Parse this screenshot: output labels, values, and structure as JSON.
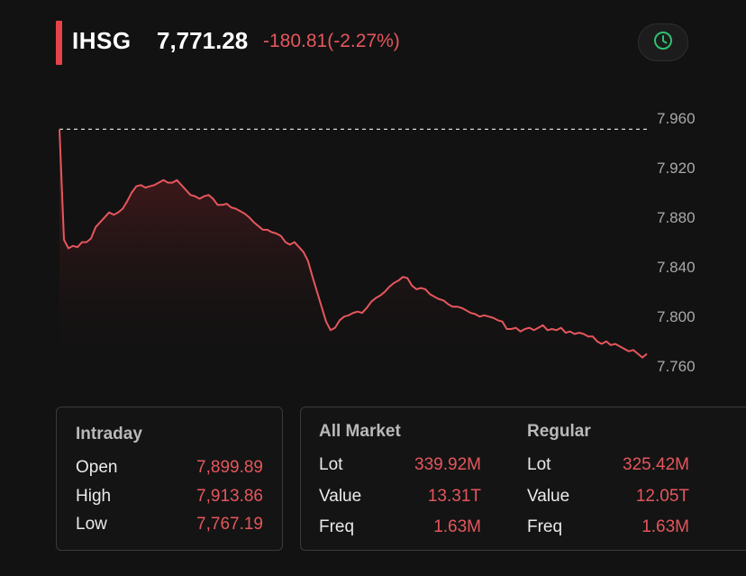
{
  "header": {
    "ticker": "IHSG",
    "price": "7,771.28",
    "change": "-180.81(-2.27%)"
  },
  "icons": {
    "history": "clock-icon"
  },
  "colors": {
    "accent": "#e5434a",
    "negative": "#e5565c",
    "clock": "#2fbf71",
    "background": "#121212"
  },
  "chart_data": {
    "type": "area",
    "title": "",
    "xlabel": "",
    "ylabel": "",
    "ylim": [
      7750,
      7968
    ],
    "y_ticks": [
      "7.960",
      "7.920",
      "7.880",
      "7.840",
      "7.800",
      "7.760"
    ],
    "reference_line": 7951,
    "series": [
      {
        "values": [
          7951,
          7862,
          7855,
          7857,
          7856,
          7860,
          7860,
          7863,
          7872,
          7876,
          7880,
          7884,
          7882,
          7884,
          7887,
          7893,
          7900,
          7905,
          7906,
          7904,
          7905,
          7906,
          7908,
          7910,
          7908,
          7908,
          7910,
          7906,
          7902,
          7898,
          7897,
          7895,
          7897,
          7898,
          7895,
          7890,
          7890,
          7891,
          7888,
          7887,
          7885,
          7883,
          7880,
          7876,
          7873,
          7870,
          7870,
          7868,
          7867,
          7865,
          7860,
          7858,
          7860,
          7856,
          7852,
          7845,
          7832,
          7820,
          7808,
          7796,
          7789,
          7791,
          7797,
          7800,
          7801,
          7803,
          7804,
          7803,
          7807,
          7812,
          7815,
          7817,
          7820,
          7824,
          7827,
          7829,
          7832,
          7831,
          7825,
          7822,
          7823,
          7822,
          7818,
          7816,
          7814,
          7813,
          7810,
          7808,
          7808,
          7807,
          7805,
          7803,
          7802,
          7800,
          7801,
          7800,
          7799,
          7797,
          7796,
          7790,
          7790,
          7791,
          7788,
          7790,
          7791,
          7789,
          7791,
          7793,
          7789,
          7790,
          7789,
          7791,
          7787,
          7788,
          7786,
          7787,
          7786,
          7784,
          7784,
          7780,
          7778,
          7780,
          7777,
          7778,
          7776,
          7774,
          7772,
          7773,
          7770,
          7767,
          7770
        ]
      }
    ]
  },
  "stats": {
    "intraday": {
      "title": "Intraday",
      "rows": [
        {
          "label": "Open",
          "value": "7,899.89"
        },
        {
          "label": "High",
          "value": "7,913.86"
        },
        {
          "label": "Low",
          "value": "7,767.19"
        }
      ]
    },
    "all_market": {
      "title": "All Market",
      "rows": [
        {
          "label": "Lot",
          "value": "339.92M"
        },
        {
          "label": "Value",
          "value": "13.31T"
        },
        {
          "label": "Freq",
          "value": "1.63M"
        }
      ]
    },
    "regular": {
      "title": "Regular",
      "rows": [
        {
          "label": "Lot",
          "value": "325.42M"
        },
        {
          "label": "Value",
          "value": "12.05T"
        },
        {
          "label": "Freq",
          "value": "1.63M"
        }
      ]
    }
  }
}
